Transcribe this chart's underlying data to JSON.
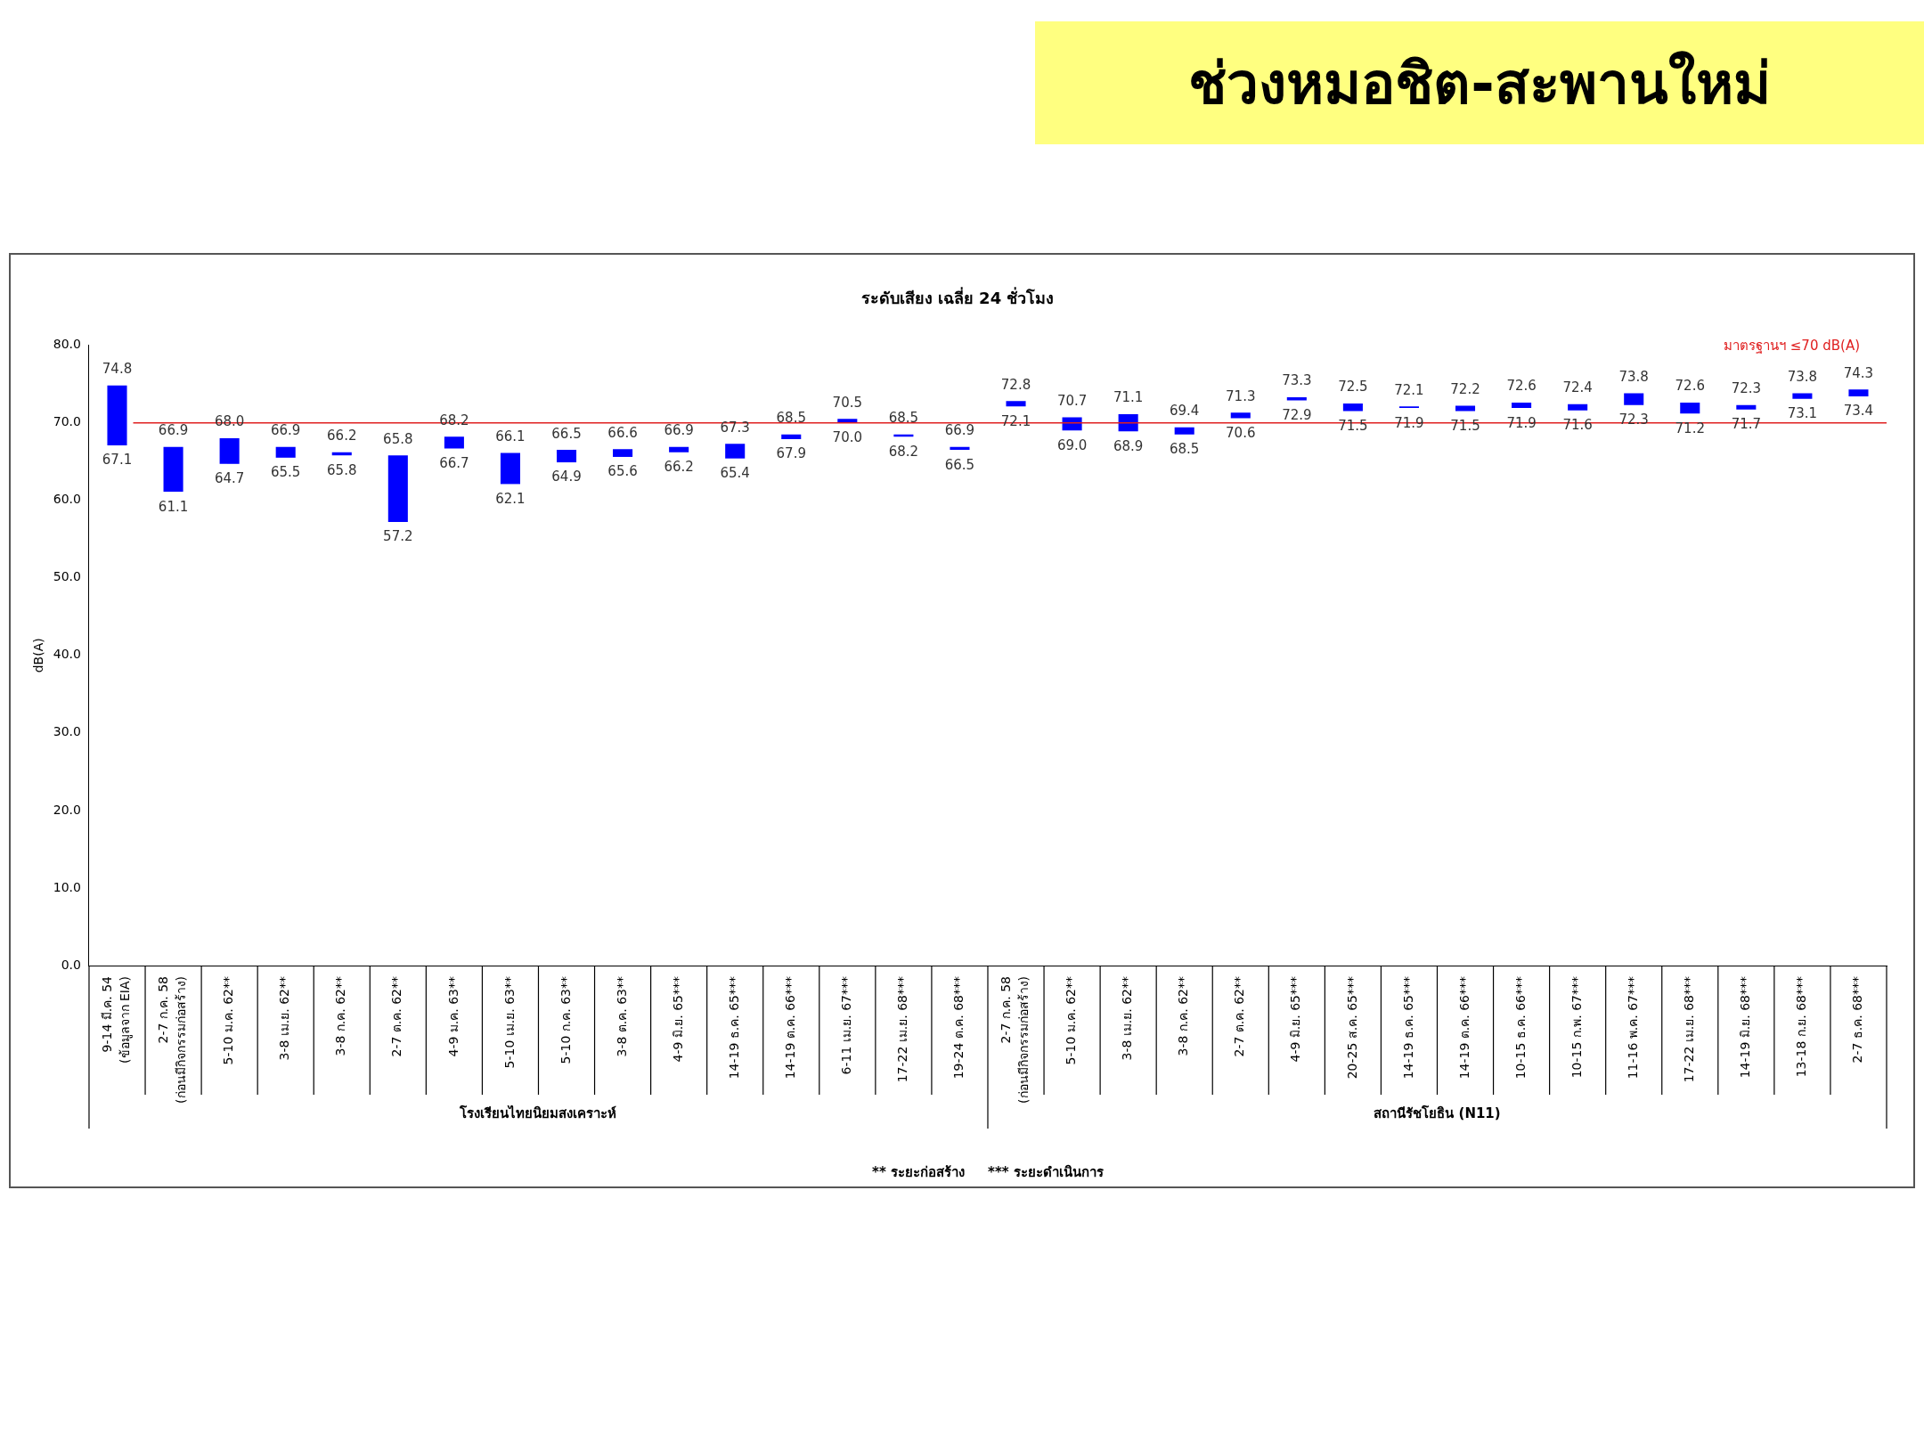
{
  "chart_data": {
    "type": "bar",
    "title": "ช่วงหมอชิต-สะพานใหม่",
    "subtitle": "ระดับเสียง เฉลี่ย 24 ชั่วโมง",
    "ylabel": "dB(A)",
    "categories": [
      "9-14 มี.ค. 54\n(ข้อมูลจาก EIA)",
      "2-7 ก.ค. 58\n(ก่อนมีกิจกรรมก่อสร้าง)",
      "5-10 ม.ค. 62**",
      "3-8 เม.ย. 62**",
      "3-8 ก.ค. 62**",
      "2-7 ต.ค. 62**",
      "4-9 ม.ค. 63**",
      "5-10 เม.ย. 63**",
      "5-10 ก.ค. 63**",
      "3-8 ต.ค. 63**",
      "4-9 มิ.ย. 65***",
      "14-19 ธ.ค. 65***",
      "14-19 ต.ค. 66***",
      "6-11 เม.ย. 67***",
      "17-22 เม.ย. 68***",
      "19-24 ต.ค. 68***",
      "2-7 ก.ค. 58\n(ก่อนมีกิจกรรมก่อสร้าง)",
      "5-10 ม.ค. 62**",
      "3-8 เม.ย. 62**",
      "3-8 ก.ค. 62**",
      "2-7 ต.ค. 62**",
      "4-9 มิ.ย. 65***",
      "20-25 ส.ค. 65***",
      "14-19 ธ.ค. 65***",
      "14-19 ต.ค. 66***",
      "10-15 ธ.ค. 66***",
      "10-15 ก.พ. 67***",
      "11-16 พ.ค. 67***",
      "17-22 เม.ย. 68***",
      "14-19 มิ.ย. 68***",
      "13-18 ก.ย. 68***",
      "2-7 ธ.ค. 68***"
    ],
    "base": [
      67.1,
      61.1,
      64.7,
      65.5,
      65.8,
      57.2,
      66.7,
      62.1,
      64.9,
      65.6,
      66.2,
      65.4,
      67.9,
      70.0,
      68.2,
      66.5,
      72.1,
      69.0,
      68.9,
      68.5,
      70.6,
      72.9,
      71.5,
      71.9,
      71.5,
      71.9,
      71.6,
      72.3,
      71.2,
      71.7,
      73.1,
      73.4
    ],
    "values": [
      7.7,
      5.8,
      3.3,
      1.4,
      0.4,
      8.6,
      1.5,
      4.0,
      1.6,
      1.0,
      0.7,
      1.9,
      0.6,
      0.5,
      0.3,
      0.4,
      0.7,
      1.7,
      2.2,
      0.9,
      0.7,
      0.4,
      1.0,
      0.2,
      0.7,
      0.7,
      0.8,
      1.5,
      1.4,
      0.6,
      0.7,
      0.9
    ],
    "color": "#0000ff",
    "value_labels": [
      [
        "74.8",
        "67.1"
      ],
      [
        "66.9",
        "61.1"
      ],
      [
        "68.0",
        "64.7"
      ],
      [
        "66.9",
        "65.5"
      ],
      [
        "66.2",
        "65.8"
      ],
      [
        "65.8",
        "57.2"
      ],
      [
        "68.2",
        "66.7"
      ],
      [
        "66.1",
        "62.1"
      ],
      [
        "66.5",
        "64.9"
      ],
      [
        "66.6",
        "65.6"
      ],
      [
        "66.9",
        "66.2"
      ],
      [
        "67.3",
        "65.4"
      ],
      [
        "68.5",
        "67.9"
      ],
      [
        "70.5",
        "70.0"
      ],
      [
        "68.5",
        "68.2"
      ],
      [
        "66.9",
        "66.5"
      ],
      [
        "72.8",
        "72.1"
      ],
      [
        "70.7",
        "69.0"
      ],
      [
        "71.1",
        "68.9"
      ],
      [
        "69.4",
        "68.5"
      ],
      [
        "71.3",
        "70.6"
      ],
      [
        "73.3",
        "72.9"
      ],
      [
        "72.5",
        "71.5"
      ],
      [
        "72.1",
        "71.9"
      ],
      [
        "72.2",
        "71.5"
      ],
      [
        "72.6",
        "71.9"
      ],
      [
        "72.4",
        "71.6"
      ],
      [
        "73.8",
        "72.3"
      ],
      [
        "72.6",
        "71.2"
      ],
      [
        "72.3",
        "71.7"
      ],
      [
        "73.8",
        "73.1"
      ],
      [
        "74.3",
        "73.4"
      ]
    ],
    "ylim": [
      0,
      80
    ],
    "yticks": [
      {
        "value": 0,
        "label": "0.0"
      },
      {
        "value": 10,
        "label": "10.0"
      },
      {
        "value": 20,
        "label": "20.0"
      },
      {
        "value": 30,
        "label": "30.0"
      },
      {
        "value": 40,
        "label": "40.0"
      },
      {
        "value": 50,
        "label": "50.0"
      },
      {
        "value": 60,
        "label": "60.0"
      },
      {
        "value": 70,
        "label": "70.0"
      },
      {
        "value": 80,
        "label": "80.0"
      }
    ],
    "ref_lines": [
      {
        "axis": "y",
        "value": 70,
        "label": "มาตรฐานฯ ≤70 dB(A)",
        "color": "#e02020"
      }
    ],
    "annotations": [
      "โรงเรียนไทยนิยมสงเคราะห์",
      "สถานีรัชโยธิน (N11)",
      "** ระยะก่อสร้าง     *** ระยะดำเนินการ"
    ],
    "grid": false,
    "legend": false
  }
}
